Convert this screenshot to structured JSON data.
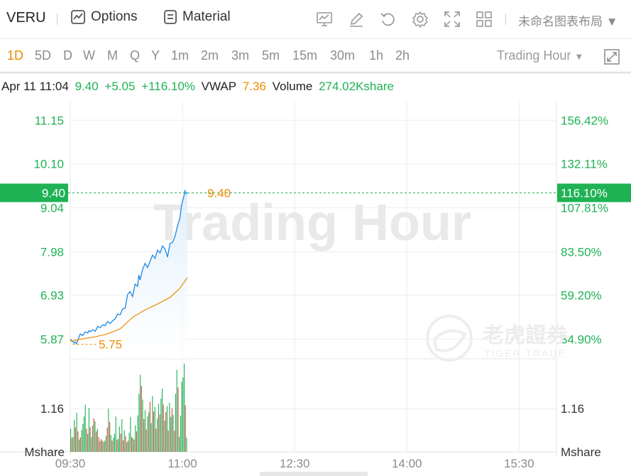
{
  "toolbar": {
    "ticker": "VERU",
    "options_label": "Options",
    "material_label": "Material",
    "layout_label": "未命名图表布局",
    "icons": [
      "chart-icon",
      "edit-icon",
      "undo-icon",
      "gear-icon",
      "fullscreen-icon",
      "grid-icon"
    ]
  },
  "periods": {
    "items": [
      "1D",
      "5D",
      "D",
      "W",
      "M",
      "Q",
      "Y",
      "1m",
      "2m",
      "3m",
      "5m",
      "15m",
      "30m",
      "1h",
      "2h"
    ],
    "active": "1D",
    "session_label": "Trading Hour"
  },
  "info": {
    "datetime": "Apr 11 11:04",
    "price": "9.40",
    "change": "+5.05",
    "change_pct": "+116.10%",
    "vwap_label": "VWAP",
    "vwap_value": "7.36",
    "volume_label": "Volume",
    "volume_value": "274.02Kshare"
  },
  "watermark": {
    "text": "Trading Hour",
    "brand_cn": "老虎證券",
    "brand_en": "TIGER TRADE"
  },
  "colors": {
    "up": "#1fb254",
    "down": "#e0413d",
    "price_line": "#1e88e5",
    "vwap_line": "#f08c00",
    "accent": "#e88a00"
  },
  "chart_data": {
    "type": "line",
    "price_axis": {
      "left_ticks": [
        "11.15",
        "10.10",
        "9.04",
        "7.98",
        "6.93",
        "5.87"
      ],
      "right_ticks": [
        "156.42%",
        "132.11%",
        "107.81%",
        "83.50%",
        "59.20%",
        "34.90%"
      ],
      "current_price": "9.40",
      "current_pct": "116.10%",
      "open_marker": "5.75",
      "last_marker": "9.40",
      "ylim": [
        5.4,
        11.6
      ]
    },
    "volume_axis": {
      "tick_left": "1.16",
      "tick_right": "1.16",
      "unit_left": "Mshare",
      "unit_right": "Mshare",
      "ylim": [
        0,
        2.5
      ]
    },
    "x_ticks": [
      "09:30",
      "11:00",
      "12:30",
      "14:00",
      "15:30"
    ],
    "x_range_minutes": [
      0,
      390
    ],
    "price_series": {
      "name": "Price",
      "x": [
        0,
        2,
        3,
        4,
        5,
        6,
        7,
        8,
        10,
        12,
        14,
        15,
        16,
        18,
        20,
        22,
        24,
        26,
        28,
        30,
        32,
        34,
        36,
        38,
        40,
        42,
        44,
        46,
        48,
        50,
        52,
        54,
        55,
        56,
        58,
        60,
        62,
        64,
        66,
        68,
        70,
        72,
        74,
        76,
        78,
        80,
        82,
        84,
        86,
        88,
        89,
        90,
        91,
        92,
        93,
        94
      ],
      "values": [
        5.87,
        5.82,
        5.78,
        5.8,
        5.76,
        5.85,
        5.92,
        6.0,
        5.96,
        6.05,
        6.02,
        6.08,
        6.05,
        6.1,
        6.06,
        6.18,
        6.15,
        6.22,
        6.2,
        6.3,
        6.25,
        6.32,
        6.36,
        6.48,
        6.46,
        6.6,
        6.62,
        6.95,
        7.02,
        6.9,
        7.2,
        7.15,
        7.42,
        7.3,
        7.55,
        7.7,
        7.6,
        7.75,
        7.9,
        7.82,
        8.02,
        7.95,
        8.12,
        8.05,
        7.85,
        8.18,
        8.2,
        8.35,
        8.6,
        8.8,
        9.05,
        9.2,
        9.3,
        9.45,
        9.38,
        9.4
      ]
    },
    "vwap_series": {
      "name": "VWAP",
      "x": [
        0,
        10,
        20,
        30,
        40,
        50,
        60,
        70,
        80,
        88,
        94
      ],
      "values": [
        5.82,
        5.88,
        5.93,
        6.0,
        6.12,
        6.4,
        6.58,
        6.72,
        6.88,
        7.1,
        7.36
      ]
    },
    "volume_series": {
      "name": "Volume",
      "values": [
        0.62,
        0.38,
        0.4,
        0.86,
        0.66,
        1.05,
        0.55,
        0.33,
        0.39,
        0.58,
        0.75,
        0.95,
        1.27,
        0.62,
        0.48,
        1.18,
        0.66,
        0.4,
        0.71,
        0.9,
        0.82,
        0.55,
        0.62,
        0.39,
        0.29,
        0.34,
        0.3,
        0.27,
        0.3,
        0.43,
        0.65,
        1.16,
        0.8,
        0.45,
        0.3,
        0.38,
        0.49,
        0.95,
        0.33,
        0.35,
        0.68,
        0.49,
        0.88,
        0.31,
        0.58,
        0.42,
        0.26,
        0.3,
        0.51,
        0.94,
        0.4,
        0.37,
        0.33,
        0.71,
        0.55,
        0.98,
        1.56,
        2.07,
        1.77,
        1.4,
        0.88,
        1.12,
        0.6,
        0.95,
        1.07,
        1.35,
        0.77,
        1.5,
        1.08,
        1.21,
        0.62,
        0.9,
        1.29,
        1.0,
        1.43,
        1.7,
        1.27,
        0.84,
        1.07,
        1.23,
        0.57,
        1.32,
        0.94,
        1.17,
        0.99,
        0.57,
        1.56,
        2.2,
        1.73,
        0.4,
        0.97,
        1.88,
        2.0,
        2.37,
        1.25,
        0.38
      ],
      "up": [
        1,
        0,
        1,
        1,
        0,
        1,
        0,
        1,
        0,
        1,
        1,
        1,
        1,
        0,
        1,
        1,
        0,
        1,
        1,
        0,
        1,
        0,
        1,
        0,
        1,
        0,
        1,
        0,
        1,
        1,
        0,
        1,
        0,
        1,
        0,
        1,
        1,
        1,
        0,
        1,
        1,
        0,
        1,
        0,
        1,
        0,
        1,
        0,
        1,
        1,
        0,
        1,
        0,
        1,
        0,
        1,
        1,
        1,
        0,
        1,
        0,
        1,
        0,
        1,
        1,
        0,
        1,
        1,
        0,
        1,
        0,
        1,
        1,
        0,
        1,
        1,
        0,
        1,
        0,
        1,
        0,
        1,
        1,
        0,
        1,
        0,
        1,
        1,
        0,
        1,
        1,
        1,
        1,
        1,
        0,
        1
      ]
    }
  }
}
